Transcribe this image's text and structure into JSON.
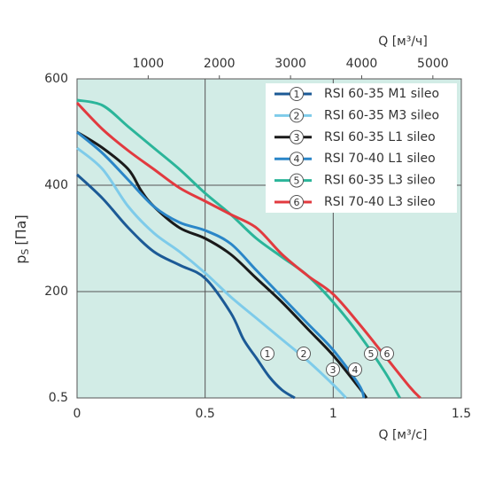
{
  "chart_data": {
    "type": "line",
    "xlabel": "Q [м³/с]",
    "x2label": "Q [м³/ч]",
    "ylabel": "p",
    "ylabel_subscript": "S",
    "ylabel_unit": "[Па]",
    "xlim": [
      0,
      1.5
    ],
    "xticks": [
      0,
      0.5,
      1,
      1.5
    ],
    "x2lim": [
      0,
      5400
    ],
    "x2ticks": [
      1000,
      2000,
      3000,
      4000,
      5000
    ],
    "ylim": [
      0,
      600
    ],
    "yticks": [
      {
        "value": 0,
        "label": "0.5"
      },
      200,
      400,
      600
    ],
    "grid": true,
    "legend": "top-right",
    "series": [
      {
        "name": "RSI 60-35 M1 sileo",
        "label": "1",
        "color": "#1c5a96",
        "x": [
          0,
          0.1,
          0.2,
          0.3,
          0.4,
          0.5,
          0.6,
          0.65,
          0.7,
          0.75,
          0.8,
          0.85
        ],
        "values": [
          420,
          375,
          320,
          275,
          250,
          225,
          160,
          110,
          75,
          40,
          15,
          0
        ]
      },
      {
        "name": "RSI 60-35 M3 sileo",
        "label": "2",
        "color": "#7ecbea",
        "x": [
          0,
          0.1,
          0.2,
          0.3,
          0.4,
          0.5,
          0.6,
          0.7,
          0.8,
          0.9,
          1.0,
          1.05
        ],
        "values": [
          470,
          430,
          360,
          310,
          275,
          235,
          190,
          150,
          110,
          70,
          25,
          0
        ]
      },
      {
        "name": "RSI 60-35 L1 sileo",
        "label": "3",
        "color": "#1a1a1a",
        "x": [
          0,
          0.1,
          0.2,
          0.25,
          0.3,
          0.4,
          0.5,
          0.6,
          0.7,
          0.8,
          0.9,
          1.0,
          1.1,
          1.13
        ],
        "values": [
          500,
          470,
          430,
          390,
          360,
          320,
          300,
          270,
          225,
          180,
          130,
          80,
          20,
          0
        ]
      },
      {
        "name": "RSI 70-40 L1 sileo",
        "label": "4",
        "color": "#2a86c8",
        "x": [
          0,
          0.1,
          0.2,
          0.3,
          0.4,
          0.5,
          0.6,
          0.7,
          0.8,
          0.9,
          1.0,
          1.1,
          1.12
        ],
        "values": [
          500,
          460,
          410,
          360,
          330,
          315,
          290,
          240,
          190,
          140,
          90,
          25,
          0
        ]
      },
      {
        "name": "RSI 60-35 L3 sileo",
        "label": "5",
        "color": "#2bb59a",
        "x": [
          0,
          0.1,
          0.2,
          0.3,
          0.4,
          0.5,
          0.6,
          0.7,
          0.8,
          0.9,
          1.0,
          1.1,
          1.2,
          1.26
        ],
        "values": [
          560,
          550,
          510,
          470,
          430,
          385,
          345,
          300,
          265,
          230,
          180,
          120,
          50,
          0
        ]
      },
      {
        "name": "RSI 70-40 L3 sileo",
        "label": "6",
        "color": "#e23a3f",
        "x": [
          0,
          0.1,
          0.2,
          0.3,
          0.4,
          0.5,
          0.6,
          0.7,
          0.8,
          0.9,
          1.0,
          1.1,
          1.2,
          1.3,
          1.34
        ],
        "values": [
          555,
          505,
          465,
          430,
          395,
          370,
          345,
          320,
          270,
          230,
          195,
          140,
          80,
          20,
          0
        ]
      }
    ]
  }
}
